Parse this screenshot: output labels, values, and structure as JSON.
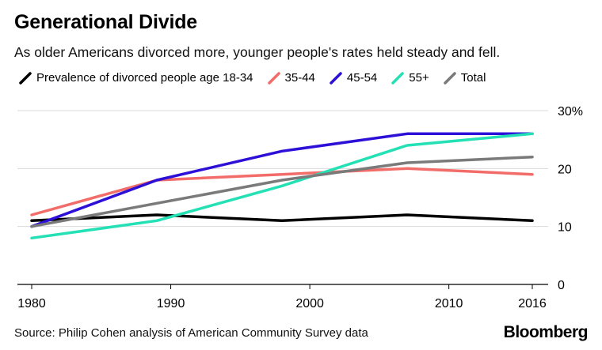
{
  "chart_data": {
    "type": "line",
    "title": "Generational Divide",
    "subtitle": "As older Americans divorced more, younger people's rates held steady and fell.",
    "x_ticks": [
      1980,
      1990,
      2000,
      2010,
      2016
    ],
    "y_ticks": [
      {
        "value": 0,
        "label": "0"
      },
      {
        "value": 10,
        "label": "10"
      },
      {
        "value": 20,
        "label": "20"
      },
      {
        "value": 30,
        "label": "30%"
      }
    ],
    "xlim": [
      1980,
      2016
    ],
    "ylim": [
      0,
      30
    ],
    "grid": "horizontal",
    "legend_position": "top",
    "series": [
      {
        "name": "Prevalence of divorced people age 18-34",
        "color": "#000000",
        "x": [
          1980,
          1989,
          1998,
          2007,
          2016
        ],
        "values": [
          11,
          12,
          11,
          12,
          11
        ]
      },
      {
        "name": "35-44",
        "color": "#f26d6a",
        "x": [
          1980,
          1989,
          1998,
          2007,
          2016
        ],
        "values": [
          12,
          18,
          19,
          20,
          19
        ]
      },
      {
        "name": "45-54",
        "color": "#2c10d8",
        "x": [
          1980,
          1989,
          1998,
          2007,
          2016
        ],
        "values": [
          10,
          18,
          23,
          26,
          26
        ]
      },
      {
        "name": "55+",
        "color": "#24e0b5",
        "x": [
          1980,
          1989,
          1998,
          2007,
          2016
        ],
        "values": [
          8,
          11,
          17,
          24,
          26
        ]
      },
      {
        "name": "Total",
        "color": "#7a7a7a",
        "x": [
          1980,
          1989,
          1998,
          2007,
          2016
        ],
        "values": [
          10,
          14,
          18,
          21,
          22
        ]
      }
    ]
  },
  "footer": {
    "source": "Source: Philip Cohen analysis of American Community Survey data",
    "brand": "Bloomberg"
  }
}
